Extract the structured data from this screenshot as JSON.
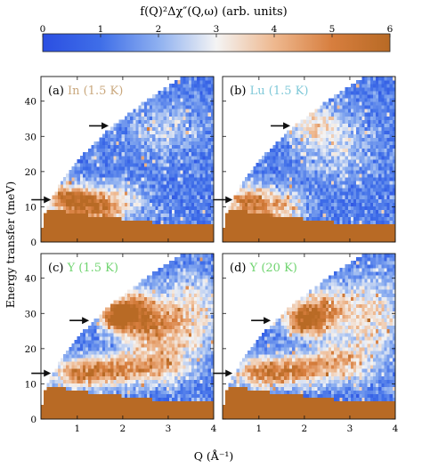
{
  "chart_data": {
    "type": "heatmap",
    "colorbar": {
      "label": "f(Q)²Δχ″(Q,ω) (arb. units)",
      "ticks": [
        "0",
        "1",
        "2",
        "3",
        "4",
        "5",
        "6"
      ],
      "range": [
        0,
        6
      ],
      "colors": [
        "#2b4fe2",
        "#3f6ee8",
        "#8eb0f0",
        "#f4f4f4",
        "#eeb88f",
        "#d77e3e",
        "#b86a25"
      ]
    },
    "x": {
      "label": "Q (Å⁻¹)",
      "ticks": [
        "1",
        "2",
        "3",
        "4"
      ],
      "range": [
        0.2,
        4.0
      ]
    },
    "y": {
      "label": "Energy transfer (meV)",
      "ticks": [
        "0",
        "10",
        "20",
        "30",
        "40"
      ],
      "range": [
        0,
        47
      ]
    },
    "kinematic_limit": {
      "q_at_max_energy": 3.3,
      "max_energy": 47,
      "min_q": 0.2
    },
    "saturation_below_meV": [
      [
        0.2,
        9.0
      ],
      [
        0.5,
        9.0
      ],
      [
        0.9,
        8.5
      ],
      [
        1.3,
        7.5
      ],
      [
        1.7,
        7.0
      ],
      [
        2.1,
        6.5
      ],
      [
        2.5,
        6.0
      ],
      [
        2.9,
        5.0
      ],
      [
        3.3,
        5.0
      ],
      [
        4.0,
        5.5
      ]
    ],
    "panels": [
      {
        "id": "a",
        "tag": "(a)",
        "sample": "In",
        "temperature": "(1.5 K)",
        "sample_color": "#c9a77c",
        "arrows_meV": [
          12,
          33
        ],
        "features": [
          {
            "q": 0.75,
            "e": 12,
            "level": 4.6,
            "sq": 0.3,
            "se": 3.5
          },
          {
            "q": 1.3,
            "e": 10,
            "level": 4.3,
            "sq": 0.35,
            "se": 3.0
          },
          {
            "q": 1.8,
            "e": 11,
            "level": 3.2,
            "sq": 0.5,
            "se": 4
          },
          {
            "q": 2.9,
            "e": 32,
            "level": 2.3,
            "sq": 0.6,
            "se": 5
          }
        ]
      },
      {
        "id": "b",
        "tag": "(b)",
        "sample": "Lu",
        "temperature": "(1.5 K)",
        "sample_color": "#7ec8d8",
        "arrows_meV": [
          12,
          33
        ],
        "features": [
          {
            "q": 0.7,
            "e": 11,
            "level": 4.5,
            "sq": 0.3,
            "se": 3.5
          },
          {
            "q": 1.4,
            "e": 10,
            "level": 4.0,
            "sq": 0.4,
            "se": 3.5
          },
          {
            "q": 2.2,
            "e": 34,
            "level": 2.8,
            "sq": 0.4,
            "se": 4
          },
          {
            "q": 2.7,
            "e": 27,
            "level": 2.4,
            "sq": 0.6,
            "se": 6
          }
        ]
      },
      {
        "id": "c",
        "tag": "(c)",
        "sample": "Y",
        "temperature": "(1.5 K)",
        "sample_color": "#6fd46f",
        "arrows_meV": [
          13,
          28
        ],
        "features": [
          {
            "q": 1.85,
            "e": 29,
            "level": 6.0,
            "sq": 0.2,
            "se": 2.5
          },
          {
            "q": 2.2,
            "e": 31,
            "level": 4.4,
            "sq": 0.35,
            "se": 4
          },
          {
            "q": 2.6,
            "e": 26,
            "level": 3.8,
            "sq": 0.45,
            "se": 5
          },
          {
            "q": 1.0,
            "e": 13,
            "level": 4.3,
            "sq": 0.45,
            "se": 3
          },
          {
            "q": 1.8,
            "e": 14,
            "level": 4.0,
            "sq": 0.45,
            "se": 3
          },
          {
            "q": 2.8,
            "e": 15,
            "level": 3.6,
            "sq": 0.5,
            "se": 4
          },
          {
            "q": 3.5,
            "e": 30,
            "level": 3.3,
            "sq": 0.5,
            "se": 8
          }
        ]
      },
      {
        "id": "d",
        "tag": "(d)",
        "sample": "Y",
        "temperature": "(20 K)",
        "sample_color": "#6fd46f",
        "arrows_meV": [
          13,
          28
        ],
        "features": [
          {
            "q": 2.0,
            "e": 28,
            "level": 5.2,
            "sq": 0.3,
            "se": 3
          },
          {
            "q": 2.4,
            "e": 31,
            "level": 4.2,
            "sq": 0.4,
            "se": 4
          },
          {
            "q": 1.0,
            "e": 13,
            "level": 4.2,
            "sq": 0.45,
            "se": 3
          },
          {
            "q": 1.8,
            "e": 14,
            "level": 4.0,
            "sq": 0.45,
            "se": 3
          },
          {
            "q": 2.8,
            "e": 16,
            "level": 3.7,
            "sq": 0.5,
            "se": 4
          },
          {
            "q": 3.5,
            "e": 30,
            "level": 3.2,
            "sq": 0.5,
            "se": 8
          }
        ]
      }
    ]
  }
}
